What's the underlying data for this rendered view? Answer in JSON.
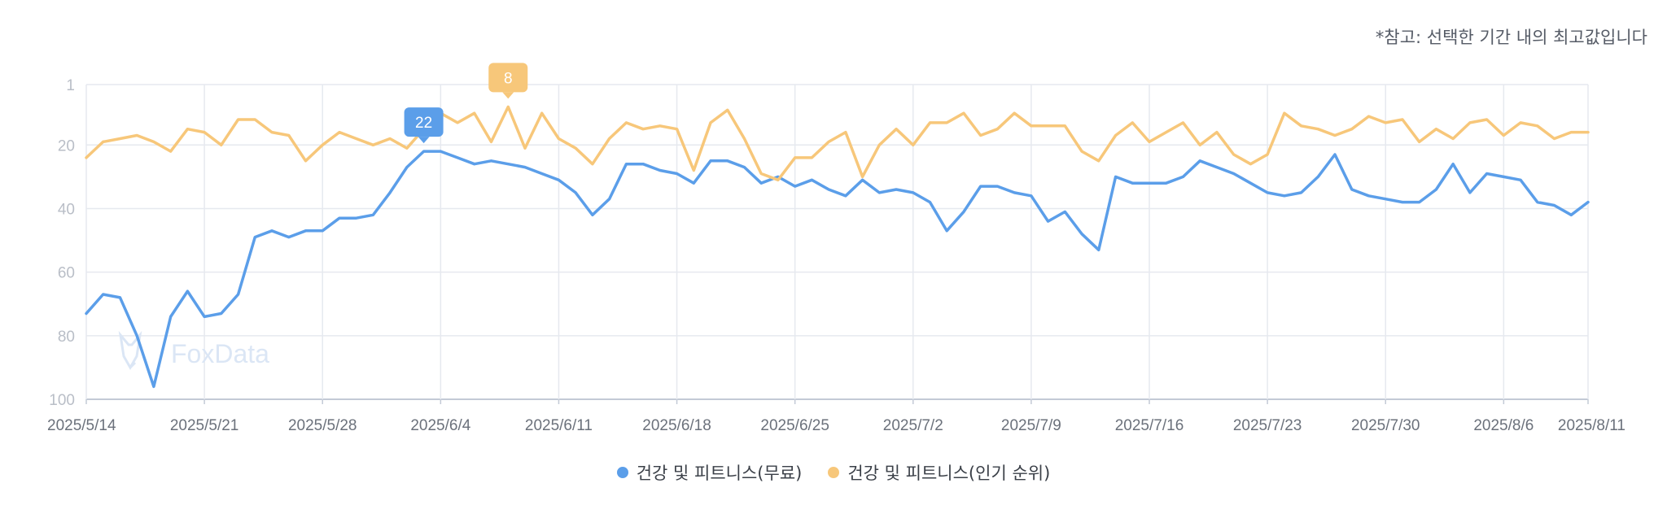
{
  "note": "*참고: 선택한 기간 내의 최고값입니다",
  "watermark": "FoxData",
  "colors": {
    "free": "#5b9ee9",
    "popular": "#f7c77a",
    "grid": "#e6e9ef",
    "axis": "#c3cad6",
    "tick_text": "#b9bec7",
    "x_tick_text": "#6b717b"
  },
  "chart_data": {
    "type": "line",
    "y_inverted": true,
    "ylim": [
      1,
      100
    ],
    "y_ticks": [
      1,
      20,
      40,
      60,
      80,
      100
    ],
    "x_ticks": [
      "2025/5/14",
      "2025/5/21",
      "2025/5/28",
      "2025/6/4",
      "2025/6/11",
      "2025/6/18",
      "2025/6/25",
      "2025/7/2",
      "2025/7/9",
      "2025/7/16",
      "2025/7/23",
      "2025/7/30",
      "2025/8/6",
      "2025/8/11"
    ],
    "x_start": "2025/5/14",
    "x_end": "2025/8/11",
    "grid": true,
    "legend_position": "bottom",
    "series": [
      {
        "name": "건강 및 피트니스(무료)",
        "color": "#5b9ee9",
        "highlight": {
          "date": "2025/6/3",
          "label": "22"
        },
        "values": [
          73,
          67,
          68,
          80,
          96,
          74,
          66,
          74,
          73,
          67,
          49,
          47,
          49,
          47,
          47,
          43,
          43,
          42,
          35,
          27,
          22,
          22,
          24,
          26,
          25,
          26,
          27,
          29,
          31,
          35,
          42,
          37,
          26,
          26,
          28,
          29,
          32,
          25,
          25,
          27,
          32,
          30,
          33,
          31,
          34,
          36,
          31,
          35,
          34,
          35,
          38,
          47,
          41,
          33,
          33,
          35,
          36,
          44,
          41,
          48,
          53,
          30,
          32,
          32,
          32,
          30,
          25,
          27,
          29,
          32,
          35,
          36,
          35,
          30,
          23,
          34,
          36,
          37,
          38,
          38,
          34,
          26,
          35,
          29,
          30,
          31,
          38,
          39,
          42,
          38
        ]
      },
      {
        "name": "건강 및 피트니스(인기 순위)",
        "color": "#f7c77a",
        "highlight": {
          "date": "2025/6/8",
          "label": "8"
        },
        "values": [
          24,
          19,
          18,
          17,
          19,
          22,
          15,
          16,
          20,
          12,
          12,
          16,
          17,
          25,
          20,
          16,
          18,
          20,
          18,
          21,
          15,
          10,
          13,
          10,
          19,
          8,
          21,
          10,
          18,
          21,
          26,
          18,
          13,
          15,
          14,
          15,
          28,
          13,
          9,
          18,
          29,
          31,
          24,
          24,
          19,
          16,
          30,
          20,
          15,
          20,
          13,
          13,
          10,
          17,
          15,
          10,
          14,
          14,
          14,
          22,
          25,
          17,
          13,
          19,
          16,
          13,
          20,
          16,
          23,
          26,
          23,
          10,
          14,
          15,
          17,
          15,
          11,
          13,
          12,
          19,
          15,
          18,
          13,
          12,
          17,
          13,
          14,
          18,
          16,
          16
        ]
      }
    ]
  }
}
